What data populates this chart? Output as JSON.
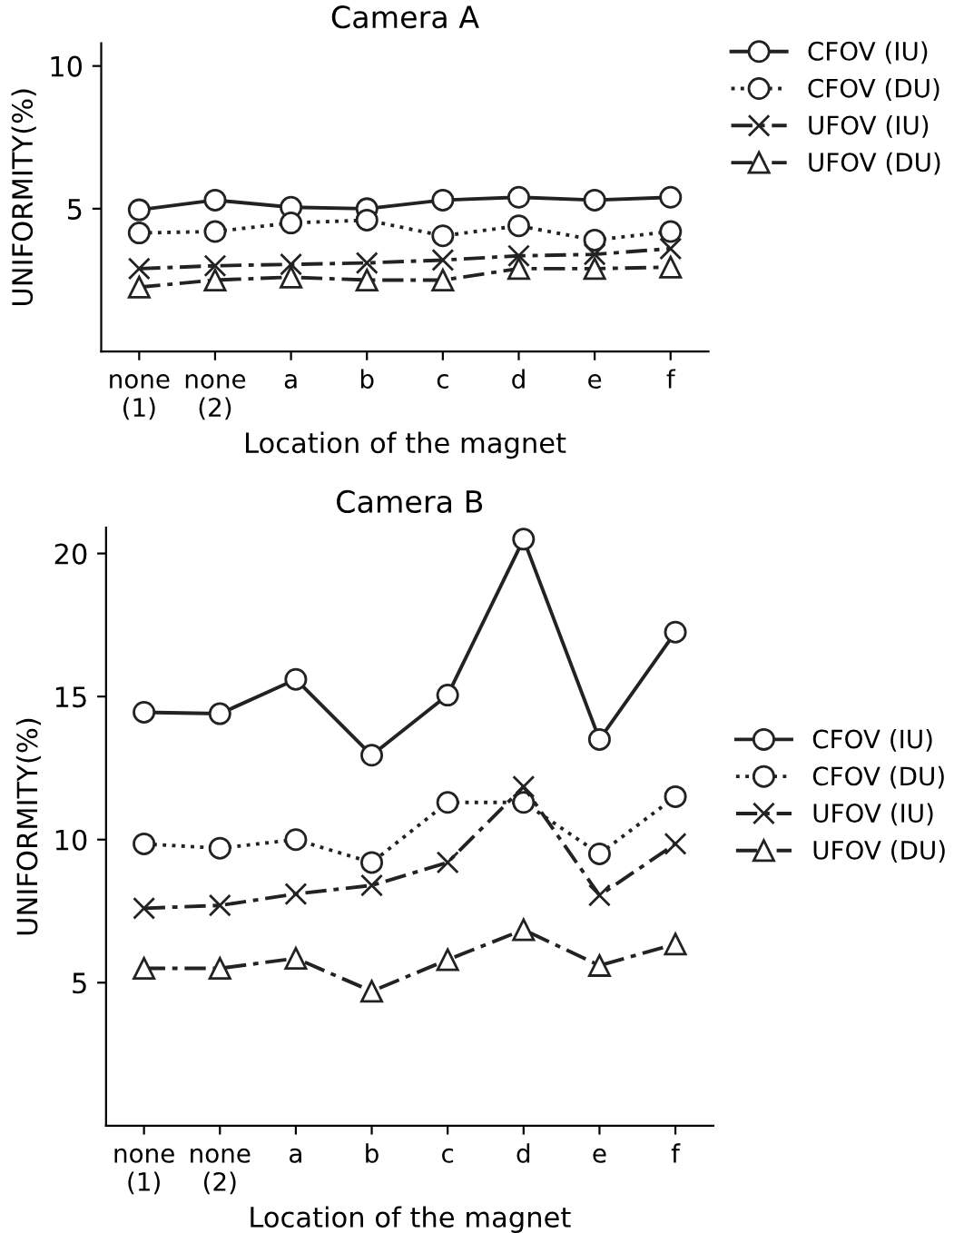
{
  "chart_data": [
    {
      "type": "line",
      "title": "Camera A",
      "xlabel": "Location of the magnet",
      "ylabel": "UNIFORMITY(%)",
      "categories": [
        "none\n(1)",
        "none\n(2)",
        "a",
        "b",
        "c",
        "d",
        "e",
        "f"
      ],
      "ylim": [
        0,
        10.8
      ],
      "yticks": [
        5,
        10
      ],
      "legend": "top right",
      "grid": false,
      "series": [
        {
          "name": "CFOV (IU)",
          "color": "#222222",
          "marker": "circle",
          "line_style": "solid",
          "values": [
            4.96,
            5.3,
            5.05,
            5.0,
            5.3,
            5.4,
            5.3,
            5.4
          ]
        },
        {
          "name": "CFOV (DU)",
          "color": "#222222",
          "marker": "circle",
          "line_style": "dotted",
          "values": [
            4.15,
            4.2,
            4.5,
            4.6,
            4.05,
            4.4,
            3.9,
            4.2
          ]
        },
        {
          "name": "UFOV (IU)",
          "color": "#222222",
          "marker": "cross",
          "line_style": "dashed",
          "values": [
            2.9,
            3.0,
            3.05,
            3.1,
            3.2,
            3.35,
            3.4,
            3.6
          ]
        },
        {
          "name": "UFOV (DU)",
          "color": "#222222",
          "marker": "triangle",
          "line_style": "dashed",
          "values": [
            2.25,
            2.5,
            2.6,
            2.5,
            2.5,
            2.9,
            2.9,
            2.95
          ]
        }
      ]
    },
    {
      "type": "line",
      "title": "Camera B",
      "xlabel": "Location of the magnet",
      "ylabel": "UNIFORMITY(%)",
      "categories": [
        "none\n(1)",
        "none\n(2)",
        "a",
        "b",
        "c",
        "d",
        "e",
        "f"
      ],
      "ylim": [
        0,
        20.9
      ],
      "yticks": [
        5,
        10,
        15,
        20
      ],
      "legend": "right",
      "grid": false,
      "series": [
        {
          "name": "CFOV (IU)",
          "color": "#222222",
          "marker": "circle",
          "line_style": "solid",
          "values": [
            14.45,
            14.4,
            15.6,
            12.95,
            15.05,
            20.5,
            13.5,
            17.25
          ]
        },
        {
          "name": "CFOV (DU)",
          "color": "#222222",
          "marker": "circle",
          "line_style": "dotted",
          "values": [
            9.85,
            9.7,
            10.0,
            9.2,
            11.3,
            11.3,
            9.5,
            11.5
          ]
        },
        {
          "name": "UFOV (IU)",
          "color": "#222222",
          "marker": "cross",
          "line_style": "dashed",
          "values": [
            7.6,
            7.7,
            8.1,
            8.4,
            9.2,
            11.85,
            8.05,
            9.85
          ]
        },
        {
          "name": "UFOV (DU)",
          "color": "#222222",
          "marker": "triangle",
          "line_style": "dashed",
          "values": [
            5.5,
            5.5,
            5.85,
            4.7,
            5.8,
            6.85,
            5.6,
            6.35
          ]
        }
      ]
    }
  ]
}
